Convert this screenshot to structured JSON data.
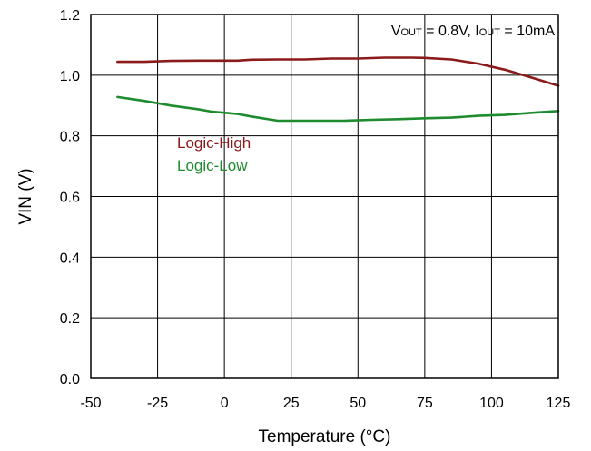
{
  "chart_data": {
    "type": "line",
    "xlabel": "Temperature (°C)",
    "ylabel": "VIN (V)",
    "xlim": [
      -50,
      125
    ],
    "ylim": [
      0,
      1.2
    ],
    "x_ticks": [
      -50,
      -25,
      0,
      25,
      50,
      75,
      100,
      125
    ],
    "y_ticks": [
      0,
      0.2,
      0.4,
      0.6,
      0.8,
      1.0,
      1.2
    ],
    "x_tick_labels": [
      "-50",
      "-25",
      "0",
      "25",
      "50",
      "75",
      "100",
      "125"
    ],
    "y_tick_labels": [
      "0.0",
      "0.2",
      "0.4",
      "0.6",
      "0.8",
      "1.0",
      "1.2"
    ],
    "grid": true,
    "annotation": {
      "parts": [
        {
          "text": "V",
          "sub": false
        },
        {
          "text": "OUT",
          "sub": true
        },
        {
          "text": " = 0.8V, I",
          "sub": false
        },
        {
          "text": "OUT",
          "sub": true
        },
        {
          "text": " = 10mA",
          "sub": false
        }
      ]
    },
    "series": [
      {
        "name": "Logic-High",
        "color": "#8B1A1A",
        "x": [
          -40,
          -30,
          -20,
          -10,
          0,
          5,
          10,
          20,
          30,
          40,
          50,
          60,
          70,
          75,
          85,
          95,
          105,
          115,
          125
        ],
        "y": [
          1.044,
          1.044,
          1.047,
          1.048,
          1.048,
          1.048,
          1.051,
          1.052,
          1.052,
          1.055,
          1.055,
          1.058,
          1.058,
          1.057,
          1.052,
          1.038,
          1.018,
          0.992,
          0.965
        ]
      },
      {
        "name": "Logic-Low",
        "color": "#1E8B2E",
        "x": [
          -40,
          -30,
          -20,
          -10,
          -5,
          5,
          10,
          20,
          30,
          40,
          45,
          55,
          65,
          75,
          85,
          95,
          105,
          115,
          125
        ],
        "y": [
          0.928,
          0.915,
          0.9,
          0.888,
          0.88,
          0.872,
          0.864,
          0.85,
          0.85,
          0.85,
          0.85,
          0.853,
          0.855,
          0.858,
          0.86,
          0.866,
          0.869,
          0.876,
          0.882
        ]
      }
    ]
  }
}
